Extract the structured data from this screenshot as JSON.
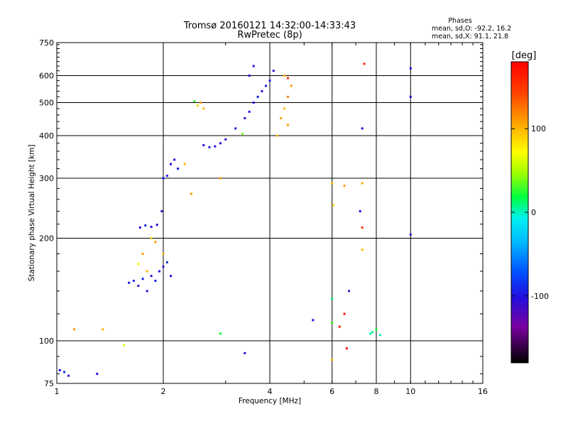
{
  "chart_data": {
    "type": "scatter",
    "title": "Tromsø 20160121 14:32:00-14:33:43",
    "subtitle": "RwPretec (8p)",
    "xlabel": "Frequency [MHz]",
    "ylabel": "Stationary phase Virtual Height [km]",
    "x_scale": "log",
    "y_scale": "log",
    "xlim": [
      1,
      16
    ],
    "ylim": [
      75,
      750
    ],
    "x_ticks": [
      1,
      2,
      4,
      6,
      8,
      10,
      16
    ],
    "x_tick_labels": [
      "1",
      "2",
      "4",
      "6",
      "8",
      "10",
      "16"
    ],
    "y_ticks": [
      75,
      100,
      200,
      300,
      400,
      500,
      600,
      750
    ],
    "y_tick_labels": [
      "75",
      "100",
      "200",
      "300",
      "400",
      "500",
      "600",
      "750"
    ],
    "grid": true,
    "phases_box": {
      "heading": "Phases",
      "line_o": "mean, sd,O: -92.2, 16.2",
      "line_x": "mean, sd,X:  91.1, 21.8"
    },
    "colorbar": {
      "label": "[deg]",
      "range": [
        -180,
        180
      ],
      "ticks": [
        100,
        0,
        -100
      ],
      "tick_labels": [
        "100",
        "0",
        "-100"
      ]
    },
    "series": [
      {
        "points": [
          [
            1.02,
            82,
            -100
          ],
          [
            1.05,
            81,
            -90
          ],
          [
            1.08,
            79,
            -110
          ],
          [
            1.3,
            80,
            -100
          ],
          [
            1.6,
            148,
            -100
          ],
          [
            1.65,
            150,
            -90
          ],
          [
            1.7,
            145,
            -110
          ],
          [
            1.75,
            152,
            -95
          ],
          [
            1.8,
            140,
            -100
          ],
          [
            1.85,
            155,
            -105
          ],
          [
            1.9,
            150,
            -95
          ],
          [
            1.95,
            160,
            -100
          ],
          [
            2.0,
            165,
            -110
          ],
          [
            2.05,
            170,
            -90
          ],
          [
            2.1,
            155,
            -100
          ],
          [
            1.72,
            215,
            -100
          ],
          [
            1.78,
            218,
            -95
          ],
          [
            1.85,
            216,
            -105
          ],
          [
            1.92,
            219,
            -100
          ],
          [
            1.98,
            240,
            -110
          ],
          [
            2.0,
            300,
            -100
          ],
          [
            2.05,
            305,
            -95
          ],
          [
            2.1,
            330,
            -100
          ],
          [
            2.15,
            340,
            -105
          ],
          [
            2.2,
            320,
            -95
          ],
          [
            2.6,
            375,
            -100
          ],
          [
            2.7,
            370,
            -95
          ],
          [
            2.8,
            372,
            -105
          ],
          [
            2.9,
            380,
            -100
          ],
          [
            3.0,
            390,
            -100
          ],
          [
            3.2,
            420,
            -95
          ],
          [
            3.4,
            450,
            -100
          ],
          [
            3.5,
            470,
            -105
          ],
          [
            3.6,
            500,
            -100
          ],
          [
            3.7,
            520,
            -95
          ],
          [
            3.8,
            540,
            -100
          ],
          [
            3.9,
            560,
            -100
          ],
          [
            4.0,
            580,
            -95
          ],
          [
            4.1,
            620,
            -100
          ],
          [
            3.5,
            600,
            -105
          ],
          [
            3.6,
            640,
            -100
          ],
          [
            3.4,
            92,
            -110
          ],
          [
            5.3,
            115,
            -100
          ],
          [
            10.0,
            630,
            -110
          ],
          [
            10.0,
            520,
            -100
          ],
          [
            10.0,
            205,
            -110
          ],
          [
            7.2,
            240,
            -100
          ],
          [
            6.7,
            140,
            -110
          ],
          [
            7.3,
            420,
            -100
          ]
        ]
      },
      {
        "points": [
          [
            1.12,
            108,
            110
          ],
          [
            1.35,
            108,
            100
          ],
          [
            1.55,
            97,
            60
          ],
          [
            1.7,
            168,
            80
          ],
          [
            1.8,
            160,
            100
          ],
          [
            1.75,
            180,
            110
          ],
          [
            1.85,
            200,
            90
          ],
          [
            1.9,
            195,
            110
          ],
          [
            2.0,
            180,
            100
          ],
          [
            2.3,
            330,
            100
          ],
          [
            2.4,
            270,
            110
          ],
          [
            2.5,
            490,
            90
          ],
          [
            2.55,
            500,
            110
          ],
          [
            2.6,
            480,
            100
          ],
          [
            2.9,
            300,
            110
          ],
          [
            4.2,
            400,
            100
          ],
          [
            4.3,
            450,
            110
          ],
          [
            4.4,
            480,
            100
          ],
          [
            4.5,
            520,
            120
          ],
          [
            4.6,
            560,
            110
          ],
          [
            4.4,
            600,
            100
          ],
          [
            4.5,
            430,
            110
          ],
          [
            6.0,
            290,
            100
          ],
          [
            6.05,
            250,
            90
          ],
          [
            6.0,
            88,
            100
          ],
          [
            6.5,
            285,
            110
          ],
          [
            7.3,
            185,
            100
          ],
          [
            7.3,
            290,
            105
          ]
        ]
      },
      {
        "points": [
          [
            2.9,
            105,
            20
          ],
          [
            6.0,
            133,
            10
          ],
          [
            6.0,
            113,
            30
          ],
          [
            7.7,
            105,
            0
          ],
          [
            7.8,
            106,
            10
          ],
          [
            8.0,
            108,
            20
          ],
          [
            8.2,
            104,
            0
          ],
          [
            2.45,
            505,
            30
          ],
          [
            3.35,
            405,
            40
          ]
        ]
      },
      {
        "points": [
          [
            4.5,
            590,
            150
          ],
          [
            6.3,
            110,
            160
          ],
          [
            6.5,
            120,
            170
          ],
          [
            6.6,
            95,
            180
          ],
          [
            7.3,
            215,
            150
          ],
          [
            7.4,
            650,
            160
          ]
        ]
      }
    ]
  }
}
